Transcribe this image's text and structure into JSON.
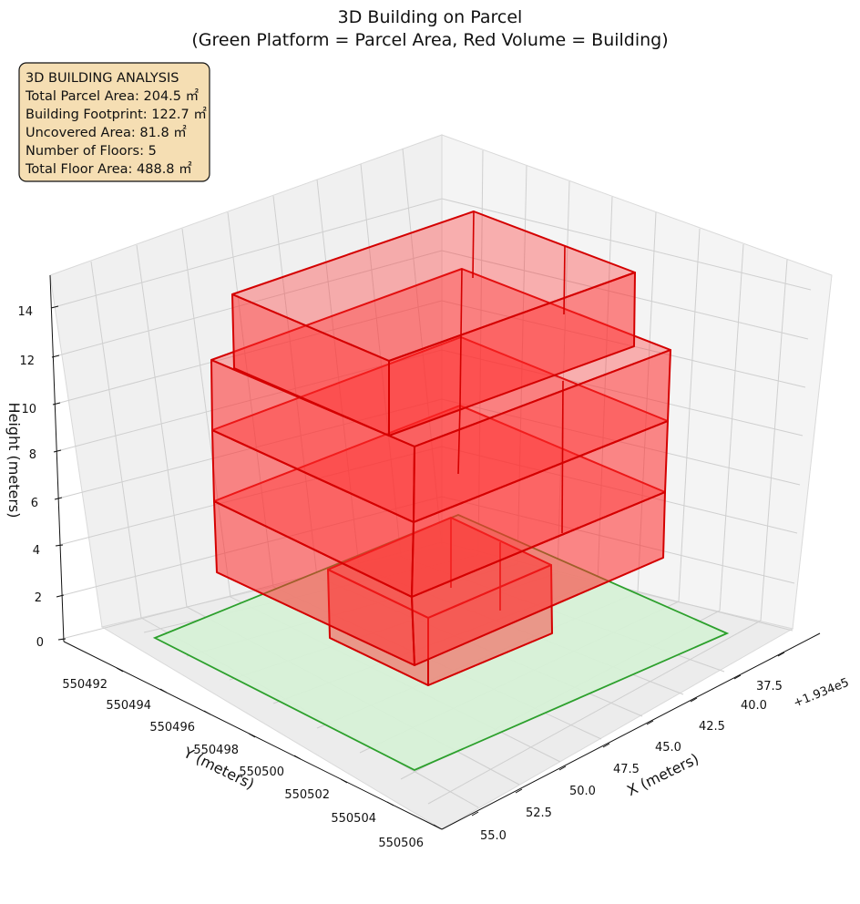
{
  "chart_data": {
    "type": "3d-box",
    "title_lines": [
      "3D Building on Parcel",
      "(Green Platform = Parcel Area, Red Volume = Building)"
    ],
    "xlabel": "X (meters)",
    "ylabel": "Y (meters)",
    "zlabel": "Height (meters)",
    "x_offset_label": "+1.934e5",
    "x_ticks": [
      "37.5",
      "40.0",
      "42.5",
      "45.0",
      "47.5",
      "50.0",
      "52.5",
      "55.0"
    ],
    "y_ticks": [
      "550492",
      "550494",
      "550496",
      "550498",
      "550500",
      "550502",
      "550504",
      "550506"
    ],
    "z_ticks": [
      "0",
      "2",
      "4",
      "6",
      "8",
      "10",
      "12",
      "14"
    ],
    "grid": true,
    "info_box": [
      "3D BUILDING ANALYSIS",
      "Total Parcel Area: 204.5 ㎡",
      "Building Footprint: 122.7 ㎡",
      "Uncovered Area: 81.8 ㎡",
      "Number of Floors: 5",
      "Total Floor Area: 488.8 ㎡"
    ],
    "colors": {
      "parcel_fill": "#d6f2d6",
      "parcel_edge": "#2ca02c",
      "building_fill": "#ff2a2a",
      "building_edge": "#d40000",
      "info_box_bg": "#f5deb3",
      "pane": "#f2f2f2",
      "grid": "#c8c8c8"
    }
  }
}
